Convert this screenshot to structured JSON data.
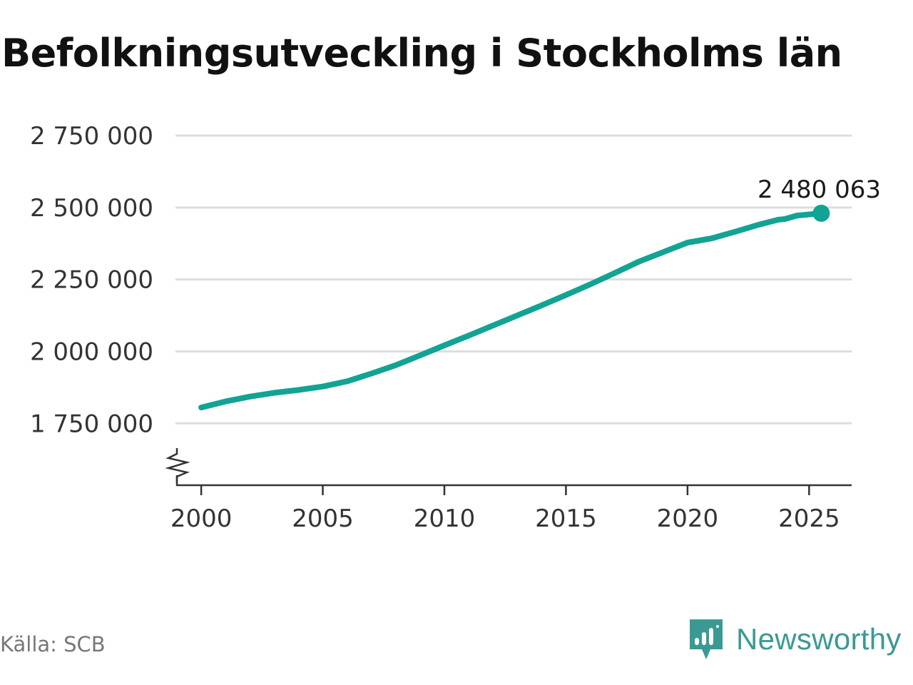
{
  "title": "Befolkningsutveckling i Stockholms län",
  "source": "Källa: SCB",
  "brand": {
    "name": "Newsworthy",
    "logo_icon": "newsworthy-logo-icon"
  },
  "colors": {
    "line": "#12a394",
    "grid": "#dddddd",
    "axis": "#333333",
    "brand": "#3a9a93"
  },
  "chart_data": {
    "type": "line",
    "title": "Befolkningsutveckling i Stockholms län",
    "xlabel": "",
    "ylabel": "",
    "xlim": [
      1999.0,
      2026.75
    ],
    "ylim": [
      1535000,
      2750000
    ],
    "y_ticks": [
      1750000,
      2000000,
      2250000,
      2500000,
      2750000
    ],
    "y_tick_labels": [
      "1 750 000",
      "2 000 000",
      "2 250 000",
      "2 500 000",
      "2 750 000"
    ],
    "x_ticks": [
      2000,
      2005,
      2010,
      2015,
      2020,
      2025
    ],
    "x_tick_labels": [
      "2000",
      "2005",
      "2010",
      "2015",
      "2020",
      "2025"
    ],
    "y_axis_break": true,
    "grid": true,
    "legend": "none",
    "series": [
      {
        "x": [
          2000,
          2001,
          2002,
          2003,
          2004,
          2005,
          2006,
          2007,
          2008,
          2009,
          2010,
          2011,
          2012,
          2013,
          2014,
          2015,
          2016,
          2017,
          2018,
          2019,
          2020,
          2021,
          2022,
          2023,
          2023.75,
          2024,
          2024.5,
          2025.5
        ],
        "y": [
          1805000,
          1826000,
          1843000,
          1856000,
          1866000,
          1878000,
          1896000,
          1923000,
          1952000,
          1986000,
          2021000,
          2055000,
          2090000,
          2125000,
          2160000,
          2196000,
          2233000,
          2272000,
          2312000,
          2345000,
          2378000,
          2393000,
          2417000,
          2442000,
          2458000,
          2460000,
          2472000,
          2480063
        ]
      }
    ],
    "annotations": [
      {
        "x": 2025.5,
        "y": 2480063,
        "label": "2 480 063"
      }
    ]
  }
}
